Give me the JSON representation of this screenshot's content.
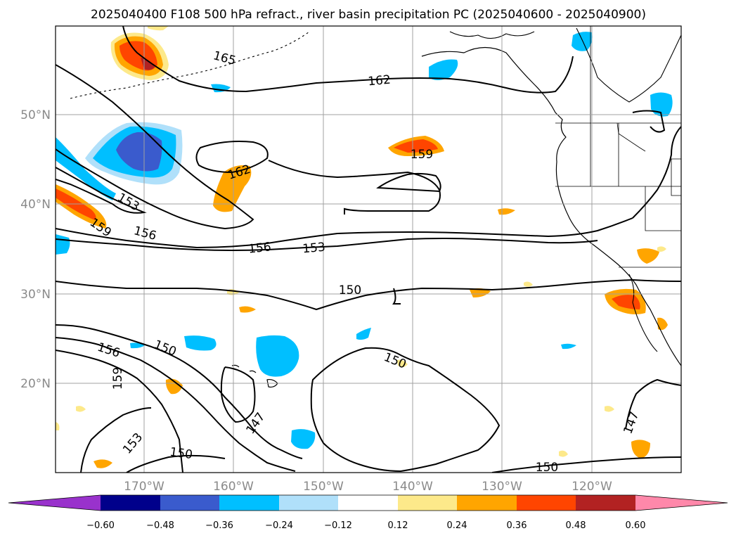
{
  "title": "2025040400 F108 500 hPa refract., river basin precipitation PC (2025040600 - 2025040900)",
  "lat_labels": [
    "50°N",
    "40°N",
    "30°N",
    "20°N"
  ],
  "lon_labels": [
    "170°W",
    "160°W",
    "150°W",
    "140°W",
    "130°W",
    "120°W"
  ],
  "contour_labels": [
    "165",
    "162",
    "162",
    "159",
    "159",
    "153",
    "156",
    "156",
    "153",
    "150",
    "156",
    "150",
    "159",
    "150",
    "147",
    "153",
    "150",
    "150",
    "147"
  ],
  "colorbar": {
    "tick_labels": [
      "−0.60",
      "−0.48",
      "−0.36",
      "−0.24",
      "−0.12",
      "0.12",
      "0.24",
      "0.36",
      "0.48",
      "0.60"
    ],
    "bins": [
      {
        "color": "#9932cc"
      },
      {
        "color": "#00008b"
      },
      {
        "color": "#3a5bcd"
      },
      {
        "color": "#00bfff"
      },
      {
        "color": "#b0e0fa"
      },
      {
        "color": "#ffffff"
      },
      {
        "color": "#fde98a"
      },
      {
        "color": "#ffa500"
      },
      {
        "color": "#ff4500"
      },
      {
        "color": "#b22222"
      },
      {
        "color": "#ff88aa"
      }
    ]
  },
  "colors": {
    "contour": "#000000",
    "grid": "#a0a0a0",
    "coast": "#000000"
  }
}
